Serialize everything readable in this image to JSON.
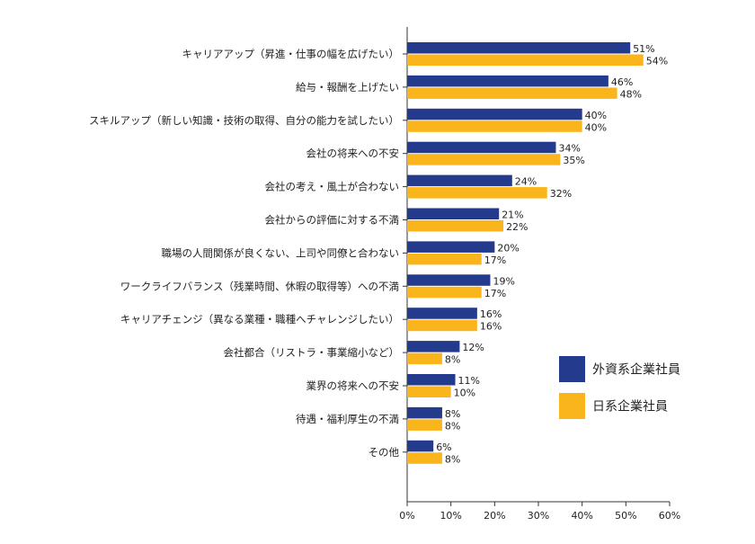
{
  "chart_data": {
    "type": "bar",
    "orientation": "horizontal",
    "categories": [
      "キャリアアップ（昇進・仕事の幅を広げたい）",
      "給与・報酬を上げたい",
      "スキルアップ（新しい知識・技術の取得、自分の能力を試したい）",
      "会社の将来への不安",
      "会社の考え・風土が合わない",
      "会社からの評価に対する不満",
      "職場の人間関係が良くない、上司や同僚と合わない",
      "ワークライフバランス（残業時間、休暇の取得等）への不満",
      "キャリアチェンジ（異なる業種・職種へチャレンジしたい）",
      "会社都合（リストラ・事業縮小など）",
      "業界の将来への不安",
      "待遇・福利厚生の不満",
      "その他"
    ],
    "series": [
      {
        "name": "外資系企業社員",
        "color": "#243a8c",
        "values": [
          51,
          46,
          40,
          34,
          24,
          21,
          20,
          19,
          16,
          12,
          11,
          8,
          6
        ],
        "labels": [
          "51%",
          "46%",
          "40%",
          "34%",
          "24%",
          "21%",
          "20%",
          "19%",
          "16%",
          "12%",
          "11%",
          "8%",
          "6%"
        ]
      },
      {
        "name": "日系企業社員",
        "color": "#fbb51c",
        "values": [
          54,
          48,
          40,
          35,
          32,
          22,
          17,
          17,
          16,
          8,
          10,
          8,
          8
        ],
        "labels": [
          "54%",
          "48%",
          "40%",
          "35%",
          "32%",
          "22%",
          "17%",
          "17%",
          "16%",
          "8%",
          "10%",
          "8%",
          "8%"
        ]
      }
    ],
    "xlim": [
      0,
      60
    ],
    "xticks": [
      0,
      10,
      20,
      30,
      40,
      50,
      60
    ],
    "xtick_labels": [
      "0%",
      "10%",
      "20%",
      "30%",
      "40%",
      "50%",
      "60%"
    ],
    "grid": false,
    "legend_position": "right"
  }
}
